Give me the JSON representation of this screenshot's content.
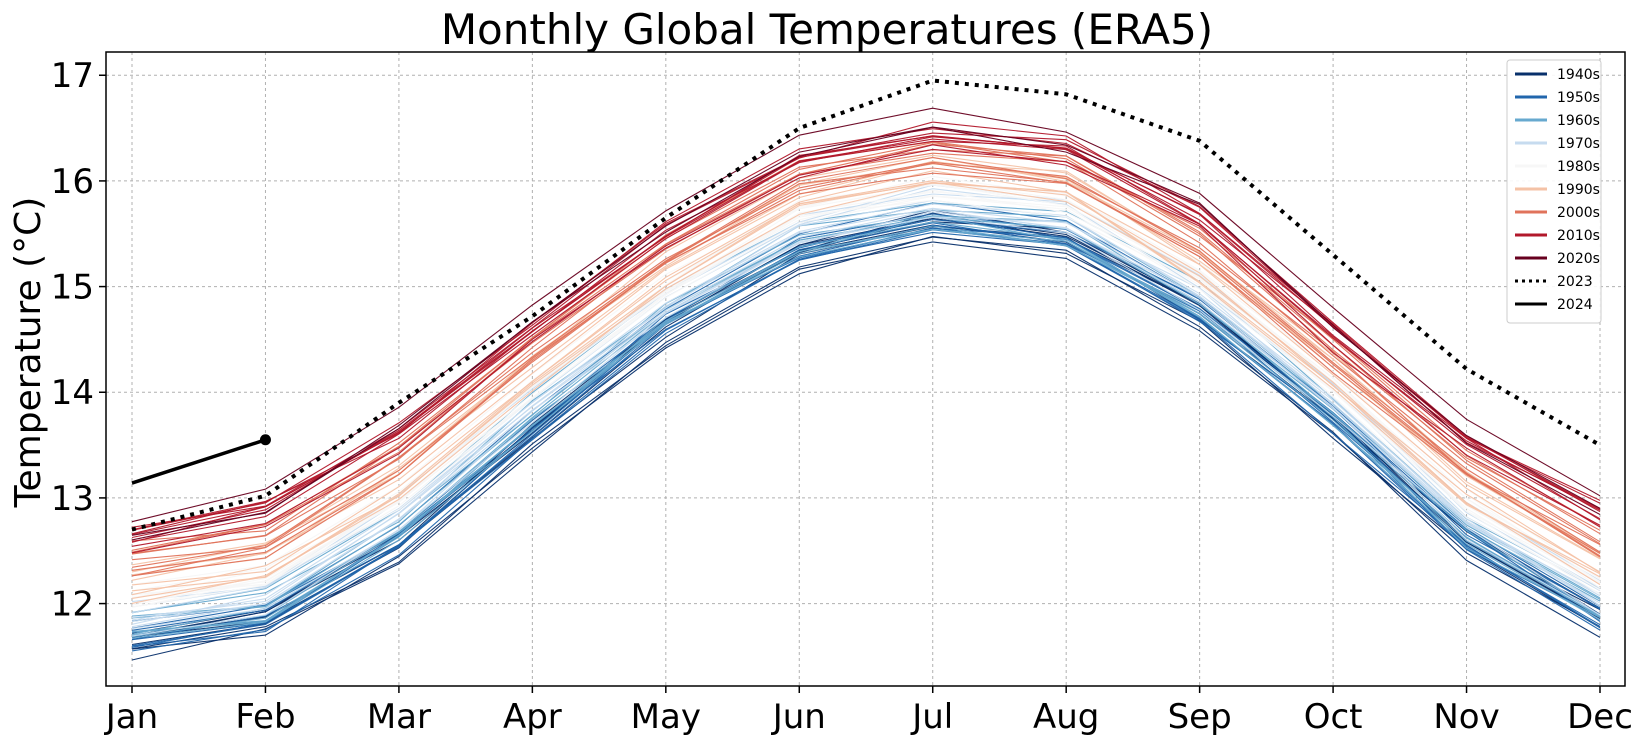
{
  "chart_data": {
    "type": "line",
    "title": "Monthly Global Temperatures (ERA5)",
    "xlabel": "",
    "ylabel": "Temperature (°C)",
    "categories": [
      "Jan",
      "Feb",
      "Mar",
      "Apr",
      "May",
      "Jun",
      "Jul",
      "Aug",
      "Sep",
      "Oct",
      "Nov",
      "Dec"
    ],
    "yticks": [
      12,
      13,
      14,
      15,
      16,
      17
    ],
    "ylim": [
      11.22,
      17.22
    ],
    "grid": true,
    "legend_position": "top-right",
    "legend": [
      {
        "label": "1940s",
        "color": "#08306b",
        "style": "solid"
      },
      {
        "label": "1950s",
        "color": "#2166ac",
        "style": "solid"
      },
      {
        "label": "1960s",
        "color": "#67a9cf",
        "style": "solid"
      },
      {
        "label": "1970s",
        "color": "#c6dbef",
        "style": "solid"
      },
      {
        "label": "1980s",
        "color": "#f7f7f7",
        "style": "solid"
      },
      {
        "label": "1990s",
        "color": "#f4c2a6",
        "style": "solid"
      },
      {
        "label": "2000s",
        "color": "#e0735b",
        "style": "solid"
      },
      {
        "label": "2010s",
        "color": "#b2182b",
        "style": "solid"
      },
      {
        "label": "2020s",
        "color": "#67001f",
        "style": "solid"
      },
      {
        "label": "2023",
        "color": "#000000",
        "style": "dotted"
      },
      {
        "label": "2024",
        "color": "#000000",
        "style": "solid"
      }
    ],
    "decades": [
      {
        "label": "1940s",
        "color": "#08306b",
        "values": [
          11.65,
          11.85,
          12.55,
          13.6,
          14.6,
          15.3,
          15.6,
          15.45,
          14.75,
          13.75,
          12.6,
          11.85
        ]
      },
      {
        "label": "1950s",
        "color": "#2166ac",
        "values": [
          11.7,
          11.9,
          12.65,
          13.7,
          14.7,
          15.38,
          15.65,
          15.5,
          14.8,
          13.8,
          12.65,
          11.9
        ]
      },
      {
        "label": "1960s",
        "color": "#67a9cf",
        "values": [
          11.8,
          11.98,
          12.75,
          13.8,
          14.78,
          15.45,
          15.7,
          15.55,
          14.85,
          13.85,
          12.7,
          11.98
        ]
      },
      {
        "label": "1970s",
        "color": "#c6dbef",
        "values": [
          11.85,
          12.05,
          12.85,
          13.9,
          14.85,
          15.55,
          15.8,
          15.65,
          14.95,
          13.95,
          12.8,
          12.05
        ]
      },
      {
        "label": "1980s",
        "color": "#f7f7f7",
        "values": [
          12.05,
          12.25,
          13.0,
          14.05,
          15.0,
          15.7,
          15.95,
          15.8,
          15.1,
          14.1,
          12.95,
          12.2
        ]
      },
      {
        "label": "1990s",
        "color": "#f4c2a6",
        "values": [
          12.2,
          12.4,
          13.15,
          14.2,
          15.15,
          15.85,
          16.1,
          15.95,
          15.2,
          14.2,
          13.1,
          12.35
        ]
      },
      {
        "label": "2000s",
        "color": "#e0735b",
        "values": [
          12.4,
          12.6,
          13.35,
          14.4,
          15.3,
          16.0,
          16.25,
          16.1,
          15.4,
          14.35,
          13.3,
          12.55
        ]
      },
      {
        "label": "2010s",
        "color": "#b2182b",
        "values": [
          12.6,
          12.85,
          13.55,
          14.55,
          15.45,
          16.15,
          16.4,
          16.25,
          15.6,
          14.5,
          13.5,
          12.8
        ]
      },
      {
        "label": "2020s",
        "color": "#67001f",
        "values": [
          12.7,
          12.95,
          13.7,
          14.75,
          15.6,
          16.3,
          16.55,
          16.4,
          15.8,
          14.7,
          13.6,
          12.95
        ]
      }
    ],
    "highlight_series": [
      {
        "name": "2023",
        "style": "dotted",
        "values": [
          12.7,
          13.02,
          13.9,
          14.72,
          15.65,
          16.5,
          16.95,
          16.82,
          16.38,
          15.3,
          14.22,
          13.5
        ]
      },
      {
        "name": "2024",
        "style": "solid",
        "values": [
          13.14,
          13.55
        ]
      }
    ]
  }
}
